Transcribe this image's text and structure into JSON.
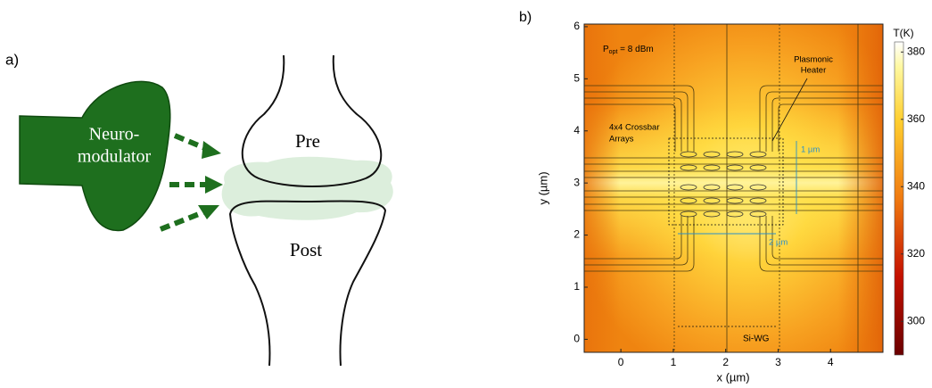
{
  "panel_a": {
    "label": "a)",
    "neuromodulator": [
      "Neuro-",
      "modulator"
    ],
    "pre": "Pre",
    "post": "Post"
  },
  "panel_b": {
    "label": "b)",
    "xlabel": "x (µm)",
    "ylabel": "y (µm)",
    "xlim": [
      -0.7,
      5
    ],
    "ylim": [
      -0.25,
      6.05
    ],
    "xticks": [
      0,
      1,
      2,
      3,
      4
    ],
    "yticks": [
      0,
      1,
      2,
      3,
      4,
      5,
      6
    ],
    "colorbar": {
      "title": "T(K)",
      "lim": [
        290,
        383
      ],
      "ticks": [
        300,
        320,
        340,
        360,
        380
      ]
    },
    "annotations": {
      "power": {
        "symbol": "P",
        "subscript": "opt",
        "rest": " = 8 dBm"
      },
      "heater": [
        "Plasmonic",
        "Heater"
      ],
      "crossbar": [
        "4x4 Crossbar",
        "Arrays"
      ],
      "height": "1 µm",
      "width": "2 µm",
      "waveguide": "Si-WG"
    }
  }
}
